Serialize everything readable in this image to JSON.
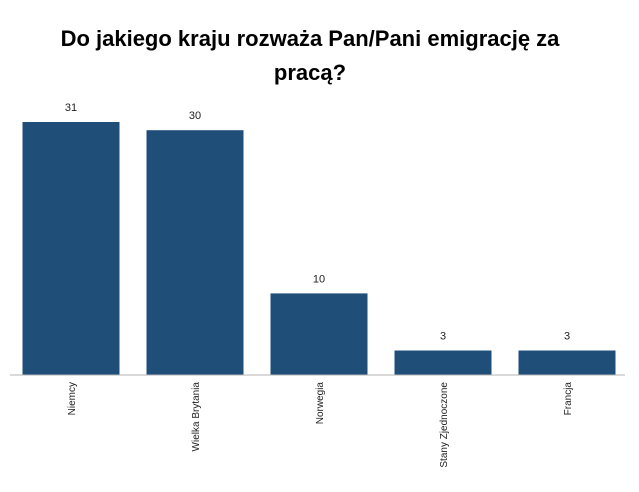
{
  "chart_data": {
    "type": "bar",
    "title": "Do jakiego kraju rozważa Pan/Pani emigrację za pracą?",
    "categories": [
      "Niemcy",
      "Wielka Brytania",
      "Norwegia",
      "Stany Zjednoczone",
      "Francja"
    ],
    "values": [
      31,
      30,
      10,
      3,
      3
    ],
    "xlabel": "",
    "ylabel": "",
    "ylim": [
      0,
      31
    ],
    "grid": false,
    "legend": "none",
    "bar_color": "#1f4e79",
    "axis_color": "#b3b3b3"
  }
}
